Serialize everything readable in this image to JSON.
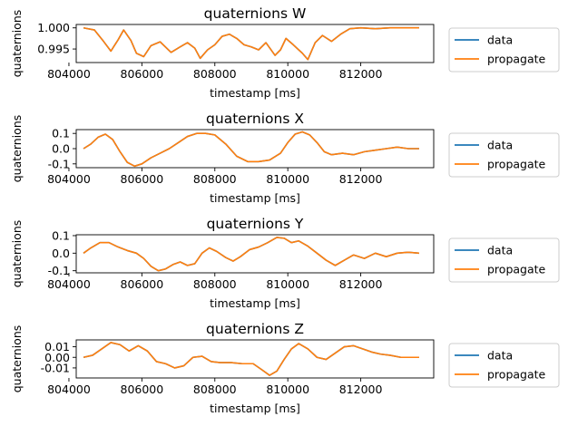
{
  "colors": {
    "data": "#1f77b4",
    "propagate": "#ff7f0e",
    "legend_edge": "#cccccc"
  },
  "chart_data": [
    {
      "type": "line",
      "title": "quaternions W",
      "xlabel": "timestamp [ms]",
      "ylabel": "quaternions",
      "xlim": [
        804200,
        814000
      ],
      "ylim": [
        0.9918,
        1.0008
      ],
      "xticks": [
        804000,
        806000,
        808000,
        810000,
        812000
      ],
      "xtick_labels": [
        "804000",
        "806000",
        "808000",
        "810000",
        "812000"
      ],
      "yticks": [
        0.995,
        1.0
      ],
      "ytick_labels": [
        "0.995",
        "1.000"
      ],
      "grid": false,
      "legend": {
        "placement": "outside-right",
        "entries": [
          "data",
          "propagate"
        ]
      },
      "x": [
        804400,
        804700,
        804950,
        805150,
        805350,
        805500,
        805700,
        805850,
        806050,
        806250,
        806500,
        806800,
        807050,
        807250,
        807450,
        807600,
        807800,
        808000,
        808200,
        808400,
        808600,
        808800,
        809000,
        809200,
        809400,
        809650,
        809800,
        809950,
        810150,
        810400,
        810550,
        810750,
        810950,
        811200,
        811450,
        811700,
        812000,
        812400,
        812800,
        813200,
        813600
      ],
      "series": [
        {
          "name": "data",
          "values": [
            1.0,
            0.9995,
            0.9968,
            0.9945,
            0.9972,
            0.9995,
            0.997,
            0.994,
            0.9932,
            0.9958,
            0.9967,
            0.9942,
            0.9955,
            0.9965,
            0.9952,
            0.9928,
            0.9948,
            0.996,
            0.998,
            0.9985,
            0.9975,
            0.996,
            0.9955,
            0.9948,
            0.9965,
            0.9935,
            0.9948,
            0.9975,
            0.996,
            0.994,
            0.9925,
            0.9965,
            0.9982,
            0.9968,
            0.9985,
            0.9998,
            1.0,
            0.9998,
            1.0,
            1.0,
            1.0
          ]
        },
        {
          "name": "propagate",
          "values": [
            1.0,
            0.9995,
            0.9968,
            0.9945,
            0.9972,
            0.9995,
            0.997,
            0.994,
            0.9932,
            0.9958,
            0.9967,
            0.9942,
            0.9955,
            0.9965,
            0.9952,
            0.9928,
            0.9948,
            0.996,
            0.998,
            0.9985,
            0.9975,
            0.996,
            0.9955,
            0.9948,
            0.9965,
            0.9935,
            0.9948,
            0.9975,
            0.996,
            0.994,
            0.9925,
            0.9965,
            0.9982,
            0.9968,
            0.9985,
            0.9998,
            1.0,
            0.9998,
            1.0,
            1.0,
            1.0
          ]
        }
      ]
    },
    {
      "type": "line",
      "title": "quaternions X",
      "xlabel": "timestamp [ms]",
      "ylabel": "quaternions",
      "xlim": [
        804200,
        814000
      ],
      "ylim": [
        -0.125,
        0.125
      ],
      "xticks": [
        804000,
        806000,
        808000,
        810000,
        812000
      ],
      "xtick_labels": [
        "804000",
        "806000",
        "808000",
        "810000",
        "812000"
      ],
      "yticks": [
        0.1,
        0.0,
        -0.1
      ],
      "ytick_labels": [
        "0.1",
        "0.0",
        "-0.1"
      ],
      "grid": false,
      "legend": {
        "placement": "outside-right",
        "entries": [
          "data",
          "propagate"
        ]
      },
      "x": [
        804400,
        804600,
        804800,
        805000,
        805200,
        805400,
        805600,
        805800,
        806000,
        806250,
        806500,
        806750,
        807000,
        807250,
        807500,
        807750,
        808000,
        808300,
        808600,
        808900,
        809200,
        809500,
        809800,
        810000,
        810200,
        810400,
        810600,
        810800,
        811000,
        811200,
        811500,
        811800,
        812100,
        812400,
        812700,
        813000,
        813300,
        813600
      ],
      "series": [
        {
          "name": "data",
          "values": [
            0.0,
            0.03,
            0.075,
            0.095,
            0.06,
            -0.02,
            -0.09,
            -0.115,
            -0.1,
            -0.06,
            -0.03,
            0.0,
            0.04,
            0.08,
            0.1,
            0.1,
            0.09,
            0.03,
            -0.05,
            -0.085,
            -0.085,
            -0.075,
            -0.03,
            0.04,
            0.095,
            0.11,
            0.09,
            0.04,
            -0.02,
            -0.04,
            -0.03,
            -0.04,
            -0.02,
            -0.01,
            0.0,
            0.01,
            0.0,
            0.0
          ]
        },
        {
          "name": "propagate",
          "values": [
            0.0,
            0.03,
            0.075,
            0.095,
            0.06,
            -0.02,
            -0.09,
            -0.115,
            -0.1,
            -0.06,
            -0.03,
            0.0,
            0.04,
            0.08,
            0.1,
            0.1,
            0.09,
            0.03,
            -0.05,
            -0.085,
            -0.085,
            -0.075,
            -0.03,
            0.04,
            0.095,
            0.11,
            0.09,
            0.04,
            -0.02,
            -0.04,
            -0.03,
            -0.04,
            -0.02,
            -0.01,
            0.0,
            0.01,
            0.0,
            0.0
          ]
        }
      ]
    },
    {
      "type": "line",
      "title": "quaternions Y",
      "xlabel": "timestamp [ms]",
      "ylabel": "quaternions",
      "xlim": [
        804200,
        814000
      ],
      "ylim": [
        -0.112,
        0.105
      ],
      "xticks": [
        804000,
        806000,
        808000,
        810000,
        812000
      ],
      "xtick_labels": [
        "804000",
        "806000",
        "808000",
        "810000",
        "812000"
      ],
      "yticks": [
        0.1,
        0.0,
        -0.1
      ],
      "ytick_labels": [
        "0.1",
        "0.0",
        "-0.1"
      ],
      "grid": false,
      "legend": {
        "placement": "outside-right",
        "entries": [
          "data",
          "propagate"
        ]
      },
      "x": [
        804400,
        804600,
        804850,
        805100,
        805350,
        805600,
        805850,
        806050,
        806250,
        806450,
        806650,
        806850,
        807050,
        807250,
        807450,
        807650,
        807850,
        808050,
        808300,
        808500,
        808700,
        808950,
        809200,
        809450,
        809700,
        809900,
        810100,
        810300,
        810550,
        810800,
        811050,
        811300,
        811550,
        811800,
        812100,
        812400,
        812700,
        813000,
        813300,
        813600
      ],
      "series": [
        {
          "name": "data",
          "values": [
            0.0,
            0.03,
            0.06,
            0.06,
            0.035,
            0.015,
            0.0,
            -0.03,
            -0.075,
            -0.1,
            -0.09,
            -0.065,
            -0.05,
            -0.07,
            -0.06,
            0.0,
            0.03,
            0.01,
            -0.025,
            -0.045,
            -0.02,
            0.02,
            0.035,
            0.06,
            0.09,
            0.085,
            0.06,
            0.07,
            0.04,
            0.0,
            -0.04,
            -0.07,
            -0.04,
            -0.01,
            -0.03,
            0.0,
            -0.02,
            0.0,
            0.005,
            0.0
          ]
        },
        {
          "name": "propagate",
          "values": [
            0.0,
            0.03,
            0.06,
            0.06,
            0.035,
            0.015,
            0.0,
            -0.03,
            -0.075,
            -0.1,
            -0.09,
            -0.065,
            -0.05,
            -0.07,
            -0.06,
            0.0,
            0.03,
            0.01,
            -0.025,
            -0.045,
            -0.02,
            0.02,
            0.035,
            0.06,
            0.09,
            0.085,
            0.06,
            0.07,
            0.04,
            0.0,
            -0.04,
            -0.07,
            -0.04,
            -0.01,
            -0.03,
            0.0,
            -0.02,
            0.0,
            0.005,
            0.0
          ]
        }
      ]
    },
    {
      "type": "line",
      "title": "quaternions Z",
      "xlabel": "timestamp [ms]",
      "ylabel": "quaternions",
      "xlim": [
        804200,
        814000
      ],
      "ylim": [
        -0.0195,
        0.0165
      ],
      "xticks": [
        804000,
        806000,
        808000,
        810000,
        812000
      ],
      "xtick_labels": [
        "804000",
        "806000",
        "808000",
        "810000",
        "812000"
      ],
      "yticks": [
        0.01,
        0.0,
        -0.01
      ],
      "ytick_labels": [
        "0.01",
        "0.00",
        "-0.01"
      ],
      "grid": false,
      "legend": {
        "placement": "outside-right",
        "entries": [
          "data",
          "propagate"
        ]
      },
      "x": [
        804400,
        804650,
        804900,
        805150,
        805400,
        805650,
        805900,
        806150,
        806400,
        806650,
        806900,
        807150,
        807400,
        807650,
        807900,
        808150,
        808450,
        808750,
        809050,
        809300,
        809500,
        809700,
        809900,
        810100,
        810300,
        810550,
        810800,
        811050,
        811300,
        811550,
        811800,
        812050,
        812300,
        812550,
        812800,
        813100,
        813400,
        813600
      ],
      "series": [
        {
          "name": "data",
          "values": [
            0.0,
            0.002,
            0.008,
            0.014,
            0.012,
            0.006,
            0.011,
            0.006,
            -0.004,
            -0.006,
            -0.01,
            -0.008,
            0.0,
            0.001,
            -0.004,
            -0.005,
            -0.005,
            -0.006,
            -0.006,
            -0.012,
            -0.017,
            -0.013,
            -0.002,
            0.008,
            0.013,
            0.008,
            0.0,
            -0.002,
            0.004,
            0.01,
            0.011,
            0.008,
            0.005,
            0.003,
            0.002,
            0.0,
            0.0,
            0.0
          ]
        },
        {
          "name": "propagate",
          "values": [
            0.0,
            0.002,
            0.008,
            0.014,
            0.012,
            0.006,
            0.011,
            0.006,
            -0.004,
            -0.006,
            -0.01,
            -0.008,
            0.0,
            0.001,
            -0.004,
            -0.005,
            -0.005,
            -0.006,
            -0.006,
            -0.012,
            -0.017,
            -0.013,
            -0.002,
            0.008,
            0.013,
            0.008,
            0.0,
            -0.002,
            0.004,
            0.01,
            0.011,
            0.008,
            0.005,
            0.003,
            0.002,
            0.0,
            0.0,
            0.0
          ]
        }
      ]
    }
  ]
}
